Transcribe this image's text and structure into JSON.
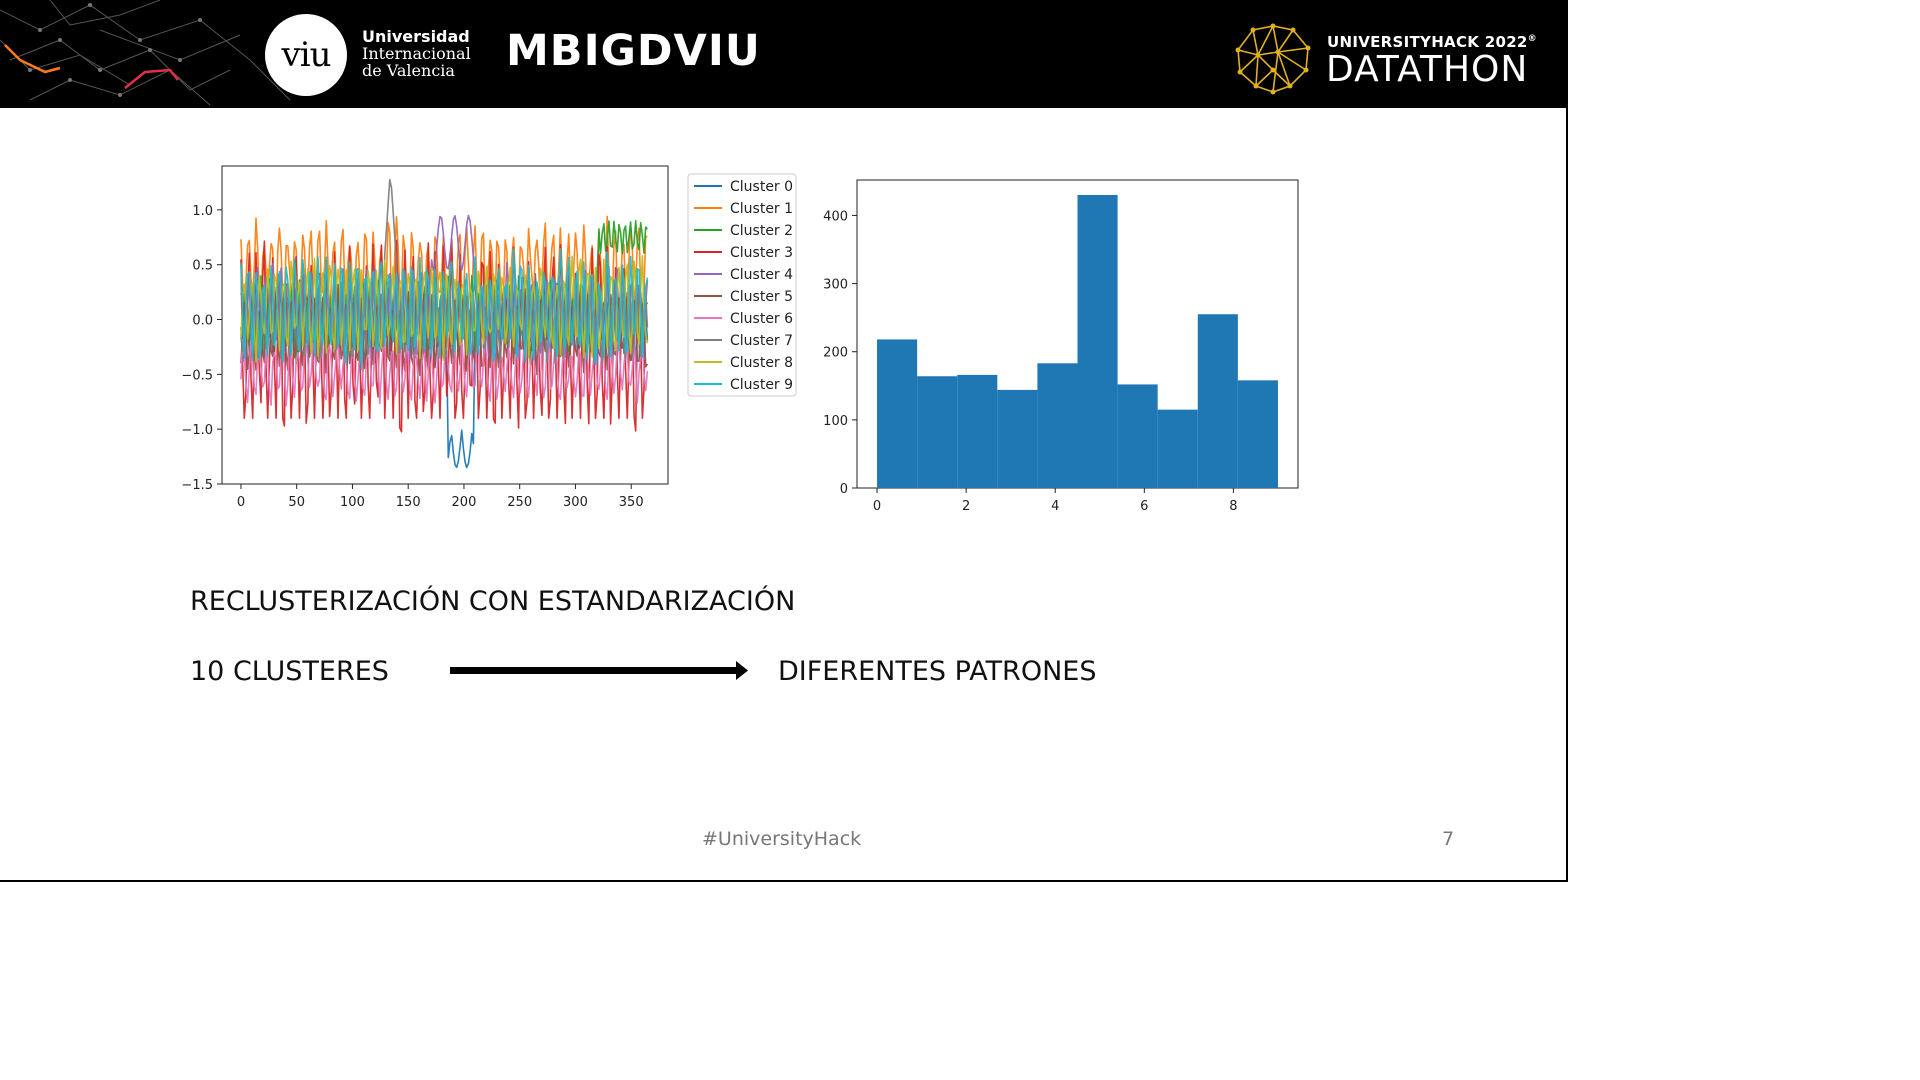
{
  "header": {
    "university_logo_text": "viu",
    "university_name": [
      "Universidad",
      "Internacional",
      "de Valencia"
    ],
    "team_name": "MBIGDVIU",
    "event_subtitle": "UNIVERSITYHACK 2022",
    "event_subtitle_mark": "®",
    "event_title": "DATATHON"
  },
  "body": {
    "heading": "RECLUSTERIZACIÓN CON ESTANDARIZACIÓN",
    "left_text": "10 CLUSTERES",
    "right_text": "DIFERENTES PATRONES"
  },
  "footer": {
    "hashtag": "#UniversityHack",
    "page_number": "7"
  },
  "colors": {
    "header_bg": "#000000",
    "accent_gold": "#e0b020",
    "accent_orange": "#ff7a1a",
    "accent_red": "#e0304a",
    "histogram_bar": "#1f77b4"
  },
  "chart_data": [
    {
      "type": "line",
      "x_range": [
        0,
        365
      ],
      "ylim": [
        -1.5,
        1.4
      ],
      "x_ticks": [
        "0",
        "50",
        "100",
        "150",
        "200",
        "250",
        "300",
        "350"
      ],
      "y_ticks": [
        "−1.5",
        "−1.0",
        "−0.5",
        "0.0",
        "0.5",
        "1.0"
      ],
      "legend_position": "outside-right",
      "series": [
        {
          "name": "Cluster 0",
          "color": "#1f77b4",
          "baseline": 0.0,
          "amplitude": 0.3,
          "notes_min": -1.35
        },
        {
          "name": "Cluster 1",
          "color": "#ff7f0e",
          "baseline": 0.45,
          "amplitude": 0.35
        },
        {
          "name": "Cluster 2",
          "color": "#2ca02c",
          "baseline": 0.0,
          "amplitude": 0.3,
          "end_level": 0.8
        },
        {
          "name": "Cluster 3",
          "color": "#d62728",
          "baseline": -0.2,
          "amplitude": 0.7
        },
        {
          "name": "Cluster 4",
          "color": "#9467bd",
          "baseline": 0.05,
          "amplitude": 0.35,
          "peak": 0.95
        },
        {
          "name": "Cluster 5",
          "color": "#8c564b",
          "baseline": -0.1,
          "amplitude": 0.3
        },
        {
          "name": "Cluster 6",
          "color": "#e377c2",
          "baseline": -0.45,
          "amplitude": 0.25
        },
        {
          "name": "Cluster 7",
          "color": "#7f7f7f",
          "baseline": 0.0,
          "amplitude": 0.3,
          "peak": 1.35
        },
        {
          "name": "Cluster 8",
          "color": "#bcbd22",
          "baseline": 0.1,
          "amplitude": 0.35
        },
        {
          "name": "Cluster 9",
          "color": "#17becf",
          "baseline": 0.1,
          "amplitude": 0.4
        }
      ]
    },
    {
      "type": "bar",
      "subtype": "histogram",
      "bin_edges": [
        0,
        0.9,
        1.8,
        2.7,
        3.6,
        4.5,
        5.4,
        6.3,
        7.2,
        8.1,
        9.0
      ],
      "values": [
        218,
        164,
        166,
        144,
        183,
        430,
        152,
        115,
        255,
        158
      ],
      "xlim": [
        -0.45,
        9.45
      ],
      "ylim": [
        0,
        452
      ],
      "x_ticks": [
        "0",
        "2",
        "4",
        "6",
        "8"
      ],
      "y_ticks": [
        "0",
        "100",
        "200",
        "300",
        "400"
      ],
      "color": "#1f77b4"
    }
  ]
}
